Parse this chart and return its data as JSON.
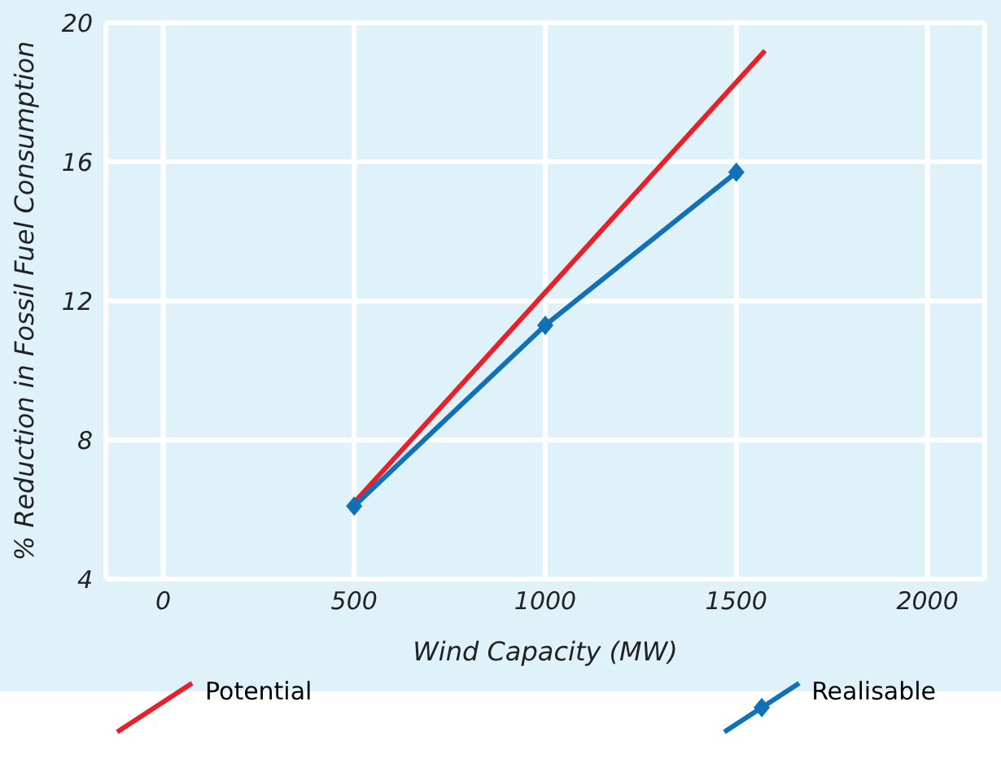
{
  "chart_data": {
    "type": "line",
    "xlabel": "Wind Capacity (MW)",
    "ylabel": "% Reduction in Fossil Fuel Consumption",
    "xlim": [
      -150,
      2150
    ],
    "ylim": [
      4,
      20
    ],
    "xticks": [
      0,
      500,
      1000,
      1500,
      2000
    ],
    "yticks": [
      4,
      8,
      12,
      16,
      20
    ],
    "grid": true,
    "legend": "bottom",
    "series": [
      {
        "name": "Potential",
        "color": "#e8202a",
        "x": [
          500,
          1575
        ],
        "values": [
          6.2,
          19.2
        ],
        "marker": "none"
      },
      {
        "name": "Realisable",
        "color": "#1070b8",
        "x": [
          500,
          1000,
          1500
        ],
        "values": [
          6.1,
          11.3,
          15.7
        ],
        "marker": "diamond"
      }
    ]
  }
}
